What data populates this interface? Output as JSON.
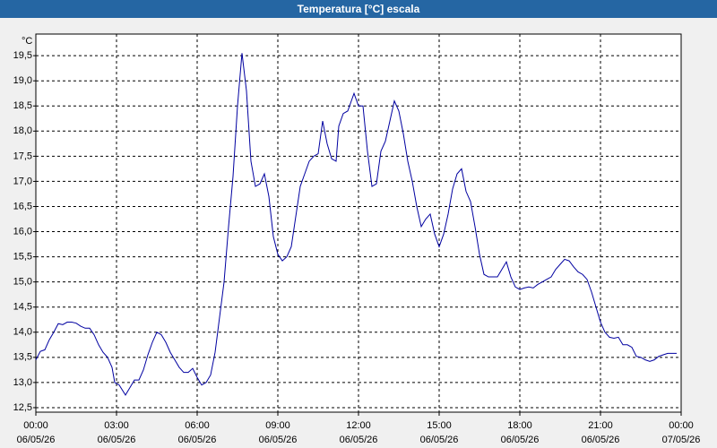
{
  "chart_data": {
    "type": "line",
    "title": "Temperatura [°C] escala",
    "y_unit": "°C",
    "color": "#0000a0",
    "grid": true,
    "x": [
      0,
      10,
      20,
      30,
      40,
      50,
      60,
      70,
      80,
      90,
      100,
      110,
      120,
      130,
      140,
      150,
      160,
      170,
      176,
      186,
      200,
      210,
      220,
      230,
      240,
      250,
      260,
      270,
      280,
      290,
      300,
      310,
      320,
      330,
      340,
      350,
      360,
      370,
      380,
      390,
      400,
      410,
      420,
      430,
      440,
      450,
      460,
      470,
      480,
      490,
      500,
      510,
      520,
      530,
      540,
      550,
      560,
      570,
      580,
      590,
      600,
      610,
      620,
      630,
      640,
      650,
      660,
      670,
      676,
      686,
      696,
      710,
      720,
      730,
      740,
      750,
      760,
      770,
      780,
      790,
      800,
      810,
      820,
      830,
      840,
      850,
      860,
      870,
      880,
      890,
      900,
      910,
      920,
      930,
      940,
      950,
      960,
      970,
      980,
      990,
      1000,
      1010,
      1020,
      1030,
      1040,
      1050,
      1060,
      1070,
      1080,
      1090,
      1100,
      1110,
      1120,
      1130,
      1140,
      1150,
      1160,
      1170,
      1180,
      1190,
      1200,
      1210,
      1220,
      1230,
      1240,
      1250,
      1260,
      1270,
      1280,
      1290,
      1300,
      1310,
      1320,
      1330,
      1340,
      1350,
      1360,
      1370,
      1380,
      1390,
      1400,
      1410,
      1420,
      1430
    ],
    "values": [
      13.45,
      13.62,
      13.65,
      13.85,
      14.0,
      14.17,
      14.15,
      14.2,
      14.2,
      14.18,
      14.12,
      14.08,
      14.08,
      13.95,
      13.75,
      13.6,
      13.5,
      13.3,
      13.0,
      12.95,
      12.75,
      12.9,
      13.05,
      13.05,
      13.25,
      13.55,
      13.8,
      14.0,
      13.95,
      13.8,
      13.6,
      13.45,
      13.3,
      13.2,
      13.2,
      13.28,
      13.1,
      12.95,
      13.0,
      13.15,
      13.6,
      14.3,
      15.0,
      16.1,
      17.1,
      18.5,
      19.55,
      18.8,
      17.4,
      16.9,
      16.95,
      17.15,
      16.7,
      15.9,
      15.55,
      15.42,
      15.5,
      15.7,
      16.3,
      16.9,
      17.15,
      17.4,
      17.5,
      17.55,
      18.2,
      17.75,
      17.45,
      17.4,
      18.1,
      18.35,
      18.4,
      18.75,
      18.5,
      18.5,
      17.6,
      16.9,
      16.95,
      17.6,
      17.8,
      18.2,
      18.6,
      18.4,
      17.95,
      17.4,
      17.0,
      16.5,
      16.1,
      16.25,
      16.35,
      15.95,
      15.7,
      15.95,
      16.35,
      16.85,
      17.15,
      17.25,
      16.8,
      16.6,
      16.1,
      15.55,
      15.15,
      15.1,
      15.1,
      15.1,
      15.25,
      15.4,
      15.1,
      14.9,
      14.85,
      14.88,
      14.9,
      14.88,
      14.95,
      15.0,
      15.05,
      15.1,
      15.25,
      15.35,
      15.45,
      15.42,
      15.3,
      15.2,
      15.15,
      15.05,
      14.8,
      14.5,
      14.2,
      14.0,
      13.9,
      13.88,
      13.9,
      13.75,
      13.75,
      13.7,
      13.52,
      13.5,
      13.45,
      13.42,
      13.45,
      13.52,
      13.55,
      13.58,
      13.58,
      13.58
    ],
    "xlim": [
      0,
      1440
    ],
    "xticks": [
      {
        "value": 0,
        "label": "00:00"
      },
      {
        "value": 180,
        "label": "03:00"
      },
      {
        "value": 360,
        "label": "06:00"
      },
      {
        "value": 540,
        "label": "09:00"
      },
      {
        "value": 720,
        "label": "12:00"
      },
      {
        "value": 900,
        "label": "15:00"
      },
      {
        "value": 1080,
        "label": "18:00"
      },
      {
        "value": 1260,
        "label": "21:00"
      },
      {
        "value": 1440,
        "label": "00:00"
      }
    ],
    "xtick_dates": [
      "06/05/26",
      "06/05/26",
      "06/05/26",
      "06/05/26",
      "06/05/26",
      "06/05/26",
      "06/05/26",
      "06/05/26",
      "07/05/26"
    ],
    "ylim": [
      12.41,
      19.93
    ],
    "yticks": [
      {
        "value": 12.5,
        "label": "12,5"
      },
      {
        "value": 13,
        "label": "13,0"
      },
      {
        "value": 13.5,
        "label": "13,5"
      },
      {
        "value": 14,
        "label": "14,0"
      },
      {
        "value": 14.5,
        "label": "14,5"
      },
      {
        "value": 15,
        "label": "15,0"
      },
      {
        "value": 15.5,
        "label": "15,5"
      },
      {
        "value": 16,
        "label": "16,0"
      },
      {
        "value": 16.5,
        "label": "16,5"
      },
      {
        "value": 17,
        "label": "17,0"
      },
      {
        "value": 17.5,
        "label": "17,5"
      },
      {
        "value": 18,
        "label": "18,0"
      },
      {
        "value": 18.5,
        "label": "18,5"
      },
      {
        "value": 19,
        "label": "19,0"
      },
      {
        "value": 19.5,
        "label": "19,5"
      }
    ]
  }
}
